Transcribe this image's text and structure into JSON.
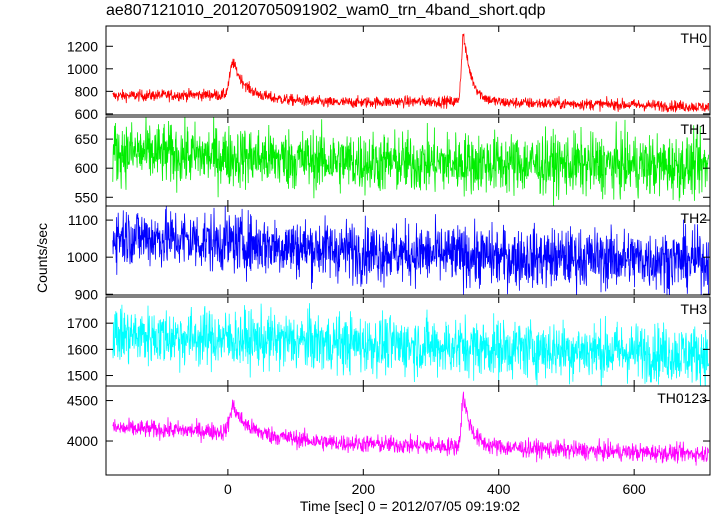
{
  "title": "ae807121010_20120705091902_wam0_trn_4band_short.qdp",
  "chart_data": {
    "type": "line",
    "xlabel": "Time [sec] 0 = 2012/07/05 09:19:02",
    "ylabel": "Counts/sec",
    "xlim": [
      -180,
      712
    ],
    "xticks": [
      0,
      200,
      400,
      600
    ],
    "xtick_labels": [
      "0",
      "200",
      "400",
      "600"
    ],
    "panels": [
      {
        "name": "TH0",
        "color": "#ff0000",
        "ylim": [
          590,
          1380
        ],
        "yticks": [
          600,
          800,
          1000,
          1200
        ],
        "ytick_labels": [
          "600",
          "800",
          "1000",
          "1200"
        ],
        "baseline": [
          [
            -170,
            760
          ],
          [
            -20,
            770
          ],
          [
            40,
            740
          ],
          [
            150,
            700
          ],
          [
            300,
            710
          ],
          [
            400,
            700
          ],
          [
            500,
            690
          ],
          [
            600,
            680
          ],
          [
            710,
            660
          ]
        ],
        "noise": 25,
        "peaks": [
          {
            "t": 8,
            "height": 300,
            "rise": 5,
            "decay": 18
          },
          {
            "t": 348,
            "height": 600,
            "rise": 3,
            "decay": 12
          }
        ]
      },
      {
        "name": "TH1",
        "color": "#00ee00",
        "ylim": [
          535,
          688
        ],
        "yticks": [
          550,
          600,
          650
        ],
        "ytick_labels": [
          "550",
          "600",
          "650"
        ],
        "baseline": [
          [
            -170,
            628
          ],
          [
            0,
            620
          ],
          [
            200,
            610
          ],
          [
            400,
            608
          ],
          [
            600,
            605
          ],
          [
            710,
            603
          ]
        ],
        "noise": 26,
        "peaks": []
      },
      {
        "name": "TH2",
        "color": "#0000ff",
        "ylim": [
          898,
          1138
        ],
        "yticks": [
          900,
          1000,
          1100
        ],
        "ytick_labels": [
          "900",
          "1000",
          "1100"
        ],
        "baseline": [
          [
            -170,
            1060
          ],
          [
            0,
            1040
          ],
          [
            200,
            1015
          ],
          [
            400,
            1000
          ],
          [
            600,
            995
          ],
          [
            710,
            990
          ]
        ],
        "noise": 40,
        "peaks": []
      },
      {
        "name": "TH3",
        "color": "#00ffff",
        "ylim": [
          1460,
          1800
        ],
        "yticks": [
          1500,
          1600,
          1700
        ],
        "ytick_labels": [
          "1500",
          "1600",
          "1700"
        ],
        "baseline": [
          [
            -170,
            1655
          ],
          [
            0,
            1640
          ],
          [
            200,
            1620
          ],
          [
            400,
            1605
          ],
          [
            600,
            1590
          ],
          [
            710,
            1580
          ]
        ],
        "noise": 55,
        "peaks": []
      },
      {
        "name": "TH0123",
        "color": "#ff00ff",
        "ylim": [
          3580,
          4680
        ],
        "yticks": [
          4000,
          4500
        ],
        "ytick_labels": [
          "4000",
          "4500"
        ],
        "baseline": [
          [
            -170,
            4160
          ],
          [
            -20,
            4120
          ],
          [
            40,
            4080
          ],
          [
            150,
            3980
          ],
          [
            300,
            3940
          ],
          [
            400,
            3920
          ],
          [
            500,
            3890
          ],
          [
            600,
            3860
          ],
          [
            710,
            3840
          ]
        ],
        "noise": 55,
        "peaks": [
          {
            "t": 8,
            "height": 330,
            "rise": 5,
            "decay": 18
          },
          {
            "t": 348,
            "height": 620,
            "rise": 3,
            "decay": 12
          }
        ]
      }
    ]
  }
}
